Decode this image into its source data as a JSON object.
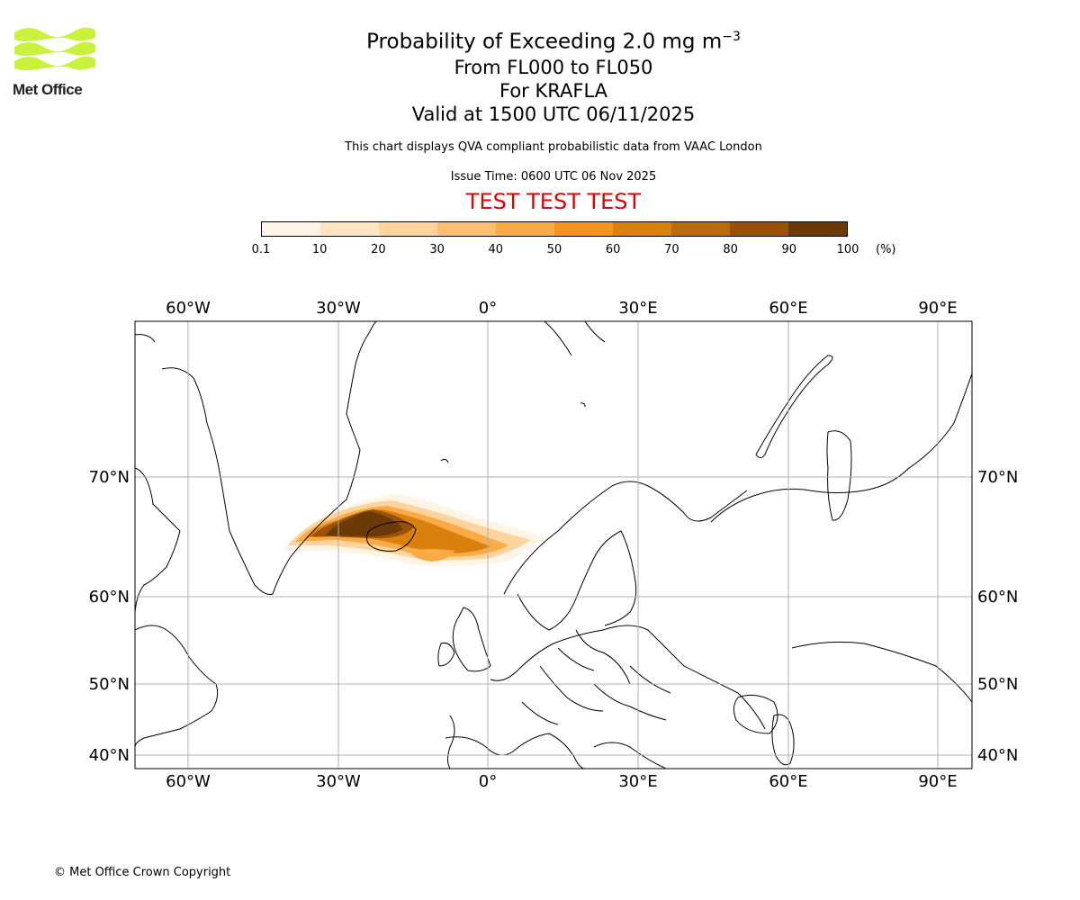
{
  "logo": {
    "name": "Met Office"
  },
  "header": {
    "title_main": "Probability of Exceeding 2.0 mg m",
    "title_superscript": "−3",
    "level_range": "From FL000 to FL050",
    "volcano": "For KRAFLA",
    "valid_time": "Valid at 1500 UTC 06/11/2025",
    "description": "This chart displays QVA compliant probabilistic data from VAAC London",
    "issue_time": "Issue Time: 0600 UTC 06 Nov 2025",
    "test_banner": "TEST TEST TEST"
  },
  "colorbar": {
    "ticks": [
      "0.1",
      "10",
      "20",
      "30",
      "40",
      "50",
      "60",
      "70",
      "80",
      "90",
      "100"
    ],
    "unit": "(%)",
    "colors": [
      "#fff5e6",
      "#ffe6c2",
      "#fdd49e",
      "#fdc070",
      "#fbab46",
      "#f5951f",
      "#d9800f",
      "#bb6a0c",
      "#9a5209",
      "#6b3a06"
    ]
  },
  "map": {
    "top_lon_labels": [
      "60°W",
      "30°W",
      "0°",
      "30°E",
      "60°E",
      "90°E"
    ],
    "bottom_lon_labels": [
      "60°W",
      "30°W",
      "0°",
      "30°E",
      "60°E",
      "90°E"
    ],
    "lat_labels": [
      "70°N",
      "60°N",
      "50°N",
      "40°N"
    ]
  },
  "footer": {
    "copyright": "© Met Office Crown Copyright"
  }
}
